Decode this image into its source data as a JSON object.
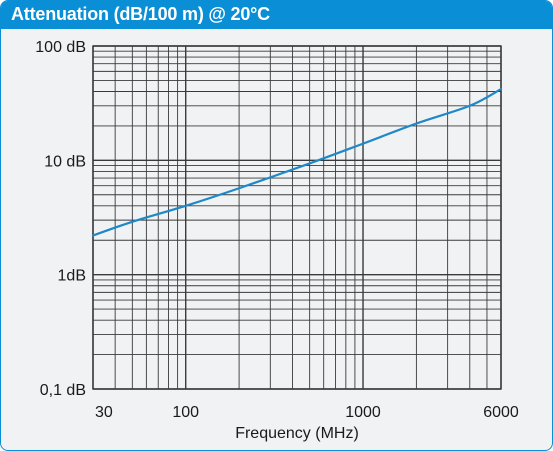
{
  "header": {
    "title": "Attenuation (dB/100 m) @ 20°C"
  },
  "colors": {
    "header": "#0a8fd6",
    "line": "#1e88c9",
    "grid": "#3a3a3a",
    "background": "#f1f2f3"
  },
  "chart_data": {
    "type": "line",
    "title": "Attenuation (dB/100 m) @ 20°C",
    "xlabel": "Frequency (MHz)",
    "ylabel": "",
    "x_scale": "log",
    "y_scale": "log",
    "xlim": [
      30,
      6000
    ],
    "ylim": [
      0.1,
      100
    ],
    "grid": true,
    "x_ticks": [
      {
        "value": 30,
        "label": "30"
      },
      {
        "value": 100,
        "label": "100"
      },
      {
        "value": 1000,
        "label": "1000"
      },
      {
        "value": 6000,
        "label": "6000"
      }
    ],
    "y_ticks": [
      {
        "value": 100,
        "label": "100 dB"
      },
      {
        "value": 10,
        "label": "10 dB"
      },
      {
        "value": 1,
        "label": "1dB"
      },
      {
        "value": 0.1,
        "label": "0,1 dB"
      }
    ],
    "series": [
      {
        "x": [
          30,
          50,
          100,
          200,
          500,
          1000,
          2000,
          4000,
          6000
        ],
        "y": [
          2.2,
          2.9,
          4.0,
          5.7,
          9.4,
          14,
          21,
          30,
          42
        ]
      }
    ]
  }
}
